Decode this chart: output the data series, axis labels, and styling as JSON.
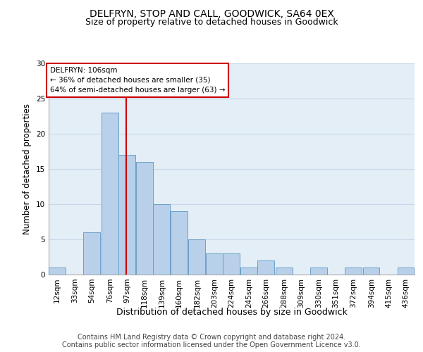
{
  "title1": "DELFRYN, STOP AND CALL, GOODWICK, SA64 0EX",
  "title2": "Size of property relative to detached houses in Goodwick",
  "xlabel": "Distribution of detached houses by size in Goodwick",
  "ylabel": "Number of detached properties",
  "footer1": "Contains HM Land Registry data © Crown copyright and database right 2024.",
  "footer2": "Contains public sector information licensed under the Open Government Licence v3.0.",
  "annotation_title": "DELFRYN: 106sqm",
  "annotation_line2": "← 36% of detached houses are smaller (35)",
  "annotation_line3": "64% of semi-detached houses are larger (63) →",
  "property_size": 106,
  "bins": [
    12,
    33,
    54,
    76,
    97,
    118,
    139,
    160,
    182,
    203,
    224,
    245,
    266,
    288,
    309,
    330,
    351,
    372,
    394,
    415,
    436
  ],
  "counts": [
    1,
    0,
    6,
    23,
    17,
    16,
    10,
    9,
    5,
    3,
    3,
    1,
    2,
    1,
    0,
    1,
    0,
    1,
    1,
    0,
    1
  ],
  "bar_color": "#B8D0EA",
  "bar_edge_color": "#6AA0C8",
  "vline_color": "#CC0000",
  "grid_color": "#C8D8E8",
  "bg_color": "#E4EEF6",
  "ylim": [
    0,
    30
  ],
  "yticks": [
    0,
    5,
    10,
    15,
    20,
    25,
    30
  ],
  "title1_fontsize": 10,
  "title2_fontsize": 9,
  "axis_label_fontsize": 8.5,
  "tick_fontsize": 7.5,
  "footer_fontsize": 7,
  "annotation_fontsize": 7.5
}
